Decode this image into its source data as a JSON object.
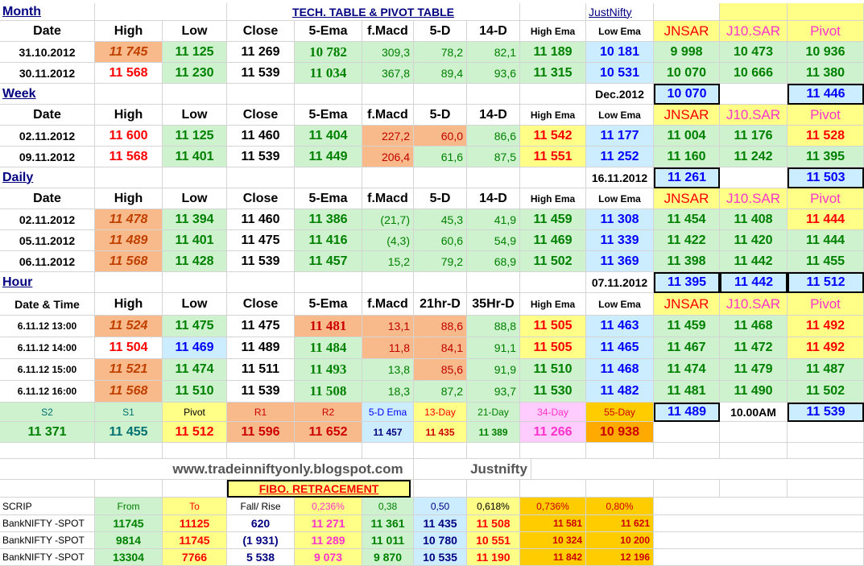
{
  "header": {
    "month_label": "Month",
    "title": "TECH. TABLE  & PIVOT TABLE",
    "brand_link": "JustNifty"
  },
  "sections": {
    "week": "Week",
    "daily": "Daily",
    "hour": "Hour"
  },
  "columns": [
    "Date",
    "High",
    "Low",
    "Close",
    "5-Ema",
    "f.Macd",
    "5-D",
    "14-D",
    "High Ema",
    "Low Ema",
    "JNSAR",
    "J10.SAR",
    "Pivot"
  ],
  "hour_columns": [
    "Date & Time",
    "High",
    "Low",
    "Close",
    "5-Ema",
    "f.Macd",
    "21hr-D",
    "35Hr-D",
    "High Ema",
    "Low Ema",
    "JNSAR",
    "J10.SAR",
    "Pivot"
  ],
  "month_rows": [
    [
      "31.10.2012",
      "11 745",
      "11 125",
      "11 269",
      "10 782",
      "309,3",
      "78,2",
      "82,1",
      "11 189",
      "10 181",
      "9 998",
      "10 473",
      "10 936"
    ],
    [
      "30.11.2012",
      "11 568",
      "11 230",
      "11 539",
      "11 034",
      "367,8",
      "89,4",
      "93,6",
      "11 315",
      "10 531",
      "10 070",
      "10 666",
      "11 380"
    ]
  ],
  "month_summary": {
    "label": "Dec.2012",
    "jnsar": "10 070",
    "pivot": "11 446"
  },
  "week_rows": [
    [
      "02.11.2012",
      "11 600",
      "11 125",
      "11 460",
      "11 404",
      "227,2",
      "60,0",
      "86,6",
      "11 542",
      "11 177",
      "11 004",
      "11 176",
      "11 528"
    ],
    [
      "09.11.2012",
      "11 568",
      "11 401",
      "11 539",
      "11 449",
      "206,4",
      "61,6",
      "87,5",
      "11 551",
      "11 252",
      "11 160",
      "11 242",
      "11 395"
    ]
  ],
  "week_summary": {
    "label": "16.11.2012",
    "jnsar": "11 261",
    "pivot": "11 503"
  },
  "daily_rows": [
    [
      "02.11.2012",
      "11 478",
      "11 394",
      "11 460",
      "11 386",
      "(21,7)",
      "45,3",
      "41,9",
      "11 459",
      "11 308",
      "11 454",
      "11 408",
      "11 444"
    ],
    [
      "05.11.2012",
      "11 489",
      "11 401",
      "11 475",
      "11 416",
      "(4,3)",
      "60,6",
      "54,9",
      "11 469",
      "11 339",
      "11 422",
      "11 420",
      "11 444"
    ],
    [
      "06.11.2012",
      "11 568",
      "11 428",
      "11 539",
      "11 457",
      "15,2",
      "79,2",
      "68,9",
      "11 502",
      "11 369",
      "11 398",
      "11 442",
      "11 455"
    ]
  ],
  "daily_summary": {
    "label": "07.11.2012",
    "jnsar": "11 395",
    "j10sar": "11 442",
    "pivot": "11 512"
  },
  "hour_rows": [
    [
      "6.11.12 13:00",
      "11 524",
      "11 475",
      "11 475",
      "11 481",
      "13,1",
      "88,6",
      "88,8",
      "11 505",
      "11 463",
      "11 459",
      "11 468",
      "11 492"
    ],
    [
      "6.11.12 14:00",
      "11 504",
      "11 469",
      "11 489",
      "11 484",
      "11,8",
      "84,1",
      "91,1",
      "11 505",
      "11 465",
      "11 467",
      "11 472",
      "11 492"
    ],
    [
      "6.11.12 15:00",
      "11 521",
      "11 474",
      "11 511",
      "11 493",
      "13,8",
      "85,6",
      "91,9",
      "11 510",
      "11 468",
      "11 474",
      "11 479",
      "11 487"
    ],
    [
      "6.11.12 16:00",
      "11 568",
      "11 510",
      "11 539",
      "11 508",
      "18,3",
      "87,2",
      "93,7",
      "11 530",
      "11 482",
      "11 481",
      "11 490",
      "11 502"
    ]
  ],
  "levels": {
    "labels": [
      "S2",
      "S1",
      "Pivot",
      "R1",
      "R2",
      "5-D Ema",
      "13-Day",
      "21-Day",
      "34-Day",
      "55-Day"
    ],
    "values": [
      "11 371",
      "11 455",
      "11 512",
      "11 596",
      "11 652",
      "11 457",
      "11 435",
      "11 389",
      "11 266",
      "10 938"
    ],
    "jnsar": "11 489",
    "time": "10.00AM",
    "pivot": "11 539"
  },
  "footer": {
    "site": "www.tradeinniftyonly.blogspot.com",
    "brand": "Justnifty"
  },
  "fibo": {
    "title": "FIBO. RETRACEMENT",
    "headers": [
      "SCRIP",
      "From",
      "To",
      "Fall/ Rise",
      "0,236%",
      "0,38",
      "0,50",
      "0,618%",
      "0,736%",
      "0,80%"
    ],
    "rows": [
      [
        "BankNIFTY -SPOT",
        "11745",
        "11125",
        "620",
        "11 271",
        "11 361",
        "11 435",
        "11 508",
        "11 581",
        "11 621"
      ],
      [
        "BankNIFTY -SPOT",
        "9814",
        "11745",
        "(1 931)",
        "11 289",
        "11 011",
        "10 780",
        "10 551",
        "10 324",
        "10 200"
      ],
      [
        "BankNIFTY -SPOT",
        "13304",
        "7766",
        "5 538",
        "9 073",
        "9 870",
        "10 535",
        "11 190",
        "11 842",
        "12 196"
      ]
    ]
  },
  "colors": {
    "green": "#cdf2cd",
    "orange": "#f9ba8b",
    "yellow": "#ffff88",
    "blue": "#ccecff",
    "violet": "#ff33cc",
    "red": "#ff0000",
    "dark_green": "#008000",
    "navy": "#000080"
  }
}
